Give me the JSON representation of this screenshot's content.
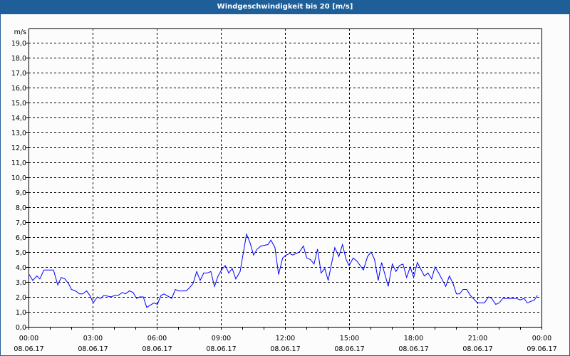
{
  "window": {
    "title": "Windgeschwindigkeit bis 20 [m/s]"
  },
  "chart_data": {
    "type": "line",
    "title": "Windgeschwindigkeit bis 20 [m/s]",
    "ylabel": "m/s",
    "xlabel": "",
    "ylim": [
      0,
      20
    ],
    "xlim_hours": [
      0,
      24
    ],
    "grid": true,
    "line_color": "#0000ff",
    "y_ticks": [
      "0,0",
      "1,0",
      "2,0",
      "3,0",
      "4,0",
      "5,0",
      "6,0",
      "7,0",
      "8,0",
      "9,0",
      "10,0",
      "11,0",
      "12,0",
      "13,0",
      "14,0",
      "15,0",
      "16,0",
      "17,0",
      "18,0",
      "19,0"
    ],
    "x_ticks": [
      {
        "hour": 0,
        "time": "00:00",
        "date": "08.06.17"
      },
      {
        "hour": 3,
        "time": "03:00",
        "date": "08.06.17"
      },
      {
        "hour": 6,
        "time": "06:00",
        "date": "08.06.17"
      },
      {
        "hour": 9,
        "time": "09:00",
        "date": "08.06.17"
      },
      {
        "hour": 12,
        "time": "12:00",
        "date": "08.06.17"
      },
      {
        "hour": 15,
        "time": "15:00",
        "date": "08.06.17"
      },
      {
        "hour": 18,
        "time": "18:00",
        "date": "08.06.17"
      },
      {
        "hour": 21,
        "time": "21:00",
        "date": "08.06.17"
      },
      {
        "hour": 24,
        "time": "00:00",
        "date": "09.06.17"
      }
    ],
    "series": [
      {
        "name": "Windgeschwindigkeit",
        "x_hours": [
          0.03,
          0.2,
          0.39,
          0.53,
          0.72,
          0.98,
          1.17,
          1.37,
          1.53,
          1.7,
          1.87,
          2.01,
          2.2,
          2.39,
          2.53,
          2.72,
          2.87,
          3.03,
          3.22,
          3.37,
          3.53,
          3.87,
          4.03,
          4.2,
          4.39,
          4.53,
          4.72,
          4.89,
          5.06,
          5.2,
          5.37,
          5.53,
          5.87,
          6.03,
          6.2,
          6.34,
          6.7,
          6.87,
          7.03,
          7.2,
          7.37,
          7.53,
          7.7,
          7.87,
          8.03,
          8.2,
          8.37,
          8.53,
          8.7,
          8.87,
          9.03,
          9.2,
          9.37,
          9.53,
          9.7,
          9.9,
          10.2,
          10.37,
          10.53,
          10.7,
          10.87,
          11.2,
          11.34,
          11.53,
          11.7,
          11.89,
          12.06,
          12.22,
          12.36,
          12.67,
          12.86,
          13.02,
          13.19,
          13.36,
          13.52,
          13.69,
          13.86,
          14.02,
          14.33,
          14.52,
          14.69,
          14.86,
          15.0,
          15.19,
          15.36,
          15.67,
          15.86,
          16.03,
          16.19,
          16.36,
          16.52,
          16.83,
          17.02,
          17.19,
          17.36,
          17.52,
          17.69,
          17.86,
          18.02,
          18.19,
          18.52,
          18.69,
          18.86,
          19.02,
          19.19,
          19.52,
          19.69,
          19.86,
          20.02,
          20.17,
          20.33,
          20.5,
          20.67,
          21.0,
          21.33,
          21.52,
          21.67,
          21.86,
          22.02,
          22.19,
          22.5,
          22.67,
          22.83,
          23.0,
          23.19,
          23.33,
          23.67,
          23.81
        ],
        "values": [
          3.5,
          3.1,
          3.4,
          3.2,
          3.8,
          3.8,
          3.8,
          2.8,
          3.3,
          3.2,
          2.9,
          2.5,
          2.4,
          2.2,
          2.2,
          2.4,
          2.1,
          1.6,
          2.0,
          1.9,
          2.1,
          2.0,
          2.1,
          2.1,
          2.3,
          2.2,
          2.4,
          2.3,
          1.9,
          2.0,
          2.0,
          1.3,
          1.6,
          1.5,
          2.1,
          2.2,
          1.9,
          2.5,
          2.4,
          2.4,
          2.4,
          2.6,
          2.9,
          3.7,
          3.1,
          3.6,
          3.6,
          3.7,
          2.7,
          3.4,
          3.8,
          4.1,
          3.6,
          3.9,
          3.2,
          3.7,
          6.2,
          5.6,
          4.8,
          5.2,
          5.4,
          5.5,
          5.8,
          5.3,
          3.5,
          4.6,
          4.8,
          4.9,
          4.8,
          5.0,
          5.4,
          4.6,
          4.5,
          4.2,
          5.2,
          3.6,
          3.9,
          3.1,
          5.3,
          4.7,
          5.5,
          4.5,
          4.1,
          4.6,
          4.4,
          3.8,
          4.7,
          5.0,
          4.5,
          3.1,
          4.3,
          2.7,
          4.2,
          3.7,
          4.1,
          4.2,
          3.3,
          4.0,
          3.3,
          4.3,
          3.4,
          3.6,
          3.2,
          4.0,
          3.6,
          2.7,
          3.4,
          2.9,
          2.2,
          2.2,
          2.5,
          2.5,
          2.1,
          1.6,
          1.6,
          2.0,
          1.9,
          1.5,
          1.6,
          1.9,
          1.9,
          1.9,
          1.9,
          1.8,
          1.9,
          1.6,
          1.8,
          2.1
        ]
      }
    ]
  }
}
